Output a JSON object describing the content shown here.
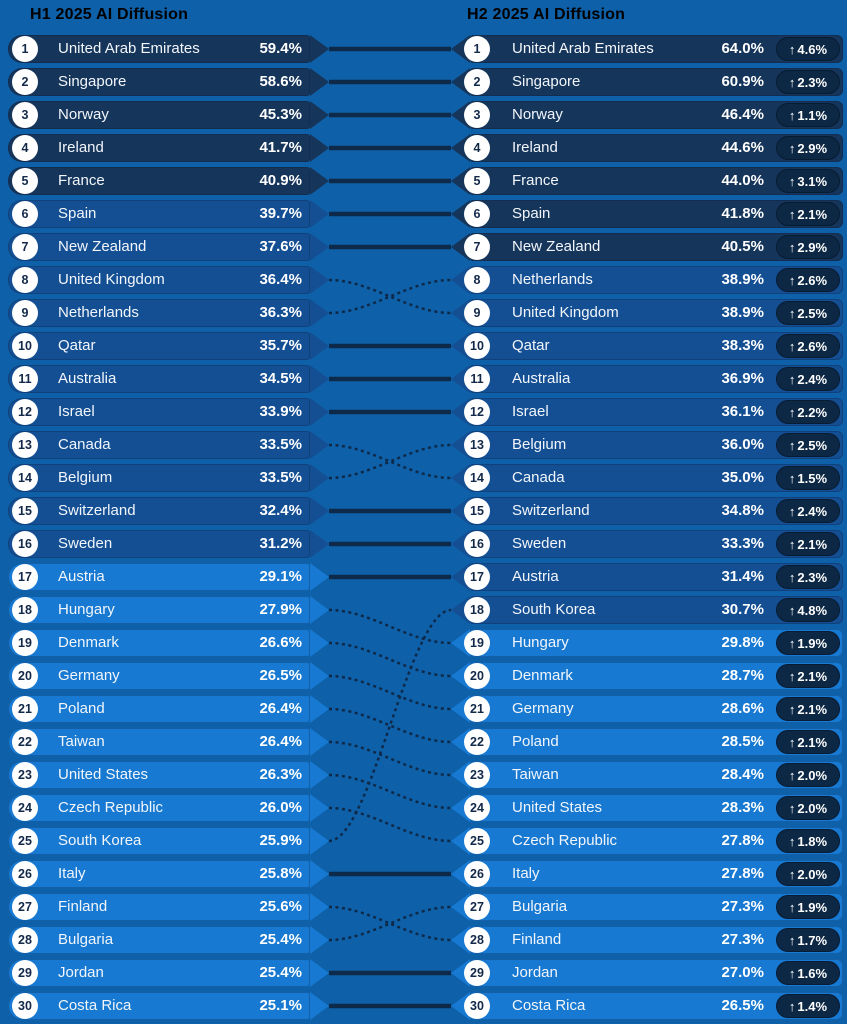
{
  "page_background": "#0E60A8",
  "chart_data": {
    "type": "table",
    "subtype": "rank-slope-comparison",
    "unit": "%",
    "legend_position": "none",
    "grid": false,
    "value_color_bands": {
      "high_min": 40,
      "high_color": "#16355B",
      "mid_min": 30,
      "mid_color": "#144F94",
      "low_color": "#1779D1"
    },
    "accents": {
      "canvas": "#0E60A8",
      "connector_line": "#0E2A4A",
      "delta_badge_bg": "#0D2845",
      "rank_circle_bg": "#FFFFFF",
      "rank_circle_text": "#13294A",
      "header_text": "#000000",
      "row_text": "#FFFFFF"
    },
    "up_arrow_icon": "↑",
    "columns": [
      {
        "title": "H1 2025 AI Diffusion",
        "rows": [
          {
            "rank": 1,
            "country": "United Arab Emirates",
            "value": 59.4
          },
          {
            "rank": 2,
            "country": "Singapore",
            "value": 58.6
          },
          {
            "rank": 3,
            "country": "Norway",
            "value": 45.3
          },
          {
            "rank": 4,
            "country": "Ireland",
            "value": 41.7
          },
          {
            "rank": 5,
            "country": "France",
            "value": 40.9
          },
          {
            "rank": 6,
            "country": "Spain",
            "value": 39.7
          },
          {
            "rank": 7,
            "country": "New Zealand",
            "value": 37.6
          },
          {
            "rank": 8,
            "country": "United Kingdom",
            "value": 36.4
          },
          {
            "rank": 9,
            "country": "Netherlands",
            "value": 36.3
          },
          {
            "rank": 10,
            "country": "Qatar",
            "value": 35.7
          },
          {
            "rank": 11,
            "country": "Australia",
            "value": 34.5
          },
          {
            "rank": 12,
            "country": "Israel",
            "value": 33.9
          },
          {
            "rank": 13,
            "country": "Canada",
            "value": 33.5
          },
          {
            "rank": 14,
            "country": "Belgium",
            "value": 33.5
          },
          {
            "rank": 15,
            "country": "Switzerland",
            "value": 32.4
          },
          {
            "rank": 16,
            "country": "Sweden",
            "value": 31.2
          },
          {
            "rank": 17,
            "country": "Austria",
            "value": 29.1
          },
          {
            "rank": 18,
            "country": "Hungary",
            "value": 27.9
          },
          {
            "rank": 19,
            "country": "Denmark",
            "value": 26.6
          },
          {
            "rank": 20,
            "country": "Germany",
            "value": 26.5
          },
          {
            "rank": 21,
            "country": "Poland",
            "value": 26.4
          },
          {
            "rank": 22,
            "country": "Taiwan",
            "value": 26.4
          },
          {
            "rank": 23,
            "country": "United States",
            "value": 26.3
          },
          {
            "rank": 24,
            "country": "Czech Republic",
            "value": 26.0
          },
          {
            "rank": 25,
            "country": "South Korea",
            "value": 25.9
          },
          {
            "rank": 26,
            "country": "Italy",
            "value": 25.8
          },
          {
            "rank": 27,
            "country": "Finland",
            "value": 25.6
          },
          {
            "rank": 28,
            "country": "Bulgaria",
            "value": 25.4
          },
          {
            "rank": 29,
            "country": "Jordan",
            "value": 25.4
          },
          {
            "rank": 30,
            "country": "Costa Rica",
            "value": 25.1
          }
        ]
      },
      {
        "title": "H2 2025 AI Diffusion",
        "rows": [
          {
            "rank": 1,
            "country": "United Arab Emirates",
            "value": 64.0,
            "delta": 4.6,
            "direction": "up"
          },
          {
            "rank": 2,
            "country": "Singapore",
            "value": 60.9,
            "delta": 2.3,
            "direction": "up"
          },
          {
            "rank": 3,
            "country": "Norway",
            "value": 46.4,
            "delta": 1.1,
            "direction": "up"
          },
          {
            "rank": 4,
            "country": "Ireland",
            "value": 44.6,
            "delta": 2.9,
            "direction": "up"
          },
          {
            "rank": 5,
            "country": "France",
            "value": 44.0,
            "delta": 3.1,
            "direction": "up"
          },
          {
            "rank": 6,
            "country": "Spain",
            "value": 41.8,
            "delta": 2.1,
            "direction": "up"
          },
          {
            "rank": 7,
            "country": "New Zealand",
            "value": 40.5,
            "delta": 2.9,
            "direction": "up"
          },
          {
            "rank": 8,
            "country": "Netherlands",
            "value": 38.9,
            "delta": 2.6,
            "direction": "up"
          },
          {
            "rank": 9,
            "country": "United Kingdom",
            "value": 38.9,
            "delta": 2.5,
            "direction": "up"
          },
          {
            "rank": 10,
            "country": "Qatar",
            "value": 38.3,
            "delta": 2.6,
            "direction": "up"
          },
          {
            "rank": 11,
            "country": "Australia",
            "value": 36.9,
            "delta": 2.4,
            "direction": "up"
          },
          {
            "rank": 12,
            "country": "Israel",
            "value": 36.1,
            "delta": 2.2,
            "direction": "up"
          },
          {
            "rank": 13,
            "country": "Belgium",
            "value": 36.0,
            "delta": 2.5,
            "direction": "up"
          },
          {
            "rank": 14,
            "country": "Canada",
            "value": 35.0,
            "delta": 1.5,
            "direction": "up"
          },
          {
            "rank": 15,
            "country": "Switzerland",
            "value": 34.8,
            "delta": 2.4,
            "direction": "up"
          },
          {
            "rank": 16,
            "country": "Sweden",
            "value": 33.3,
            "delta": 2.1,
            "direction": "up"
          },
          {
            "rank": 17,
            "country": "Austria",
            "value": 31.4,
            "delta": 2.3,
            "direction": "up"
          },
          {
            "rank": 18,
            "country": "South Korea",
            "value": 30.7,
            "delta": 4.8,
            "direction": "up"
          },
          {
            "rank": 19,
            "country": "Hungary",
            "value": 29.8,
            "delta": 1.9,
            "direction": "up"
          },
          {
            "rank": 20,
            "country": "Denmark",
            "value": 28.7,
            "delta": 2.1,
            "direction": "up"
          },
          {
            "rank": 21,
            "country": "Germany",
            "value": 28.6,
            "delta": 2.1,
            "direction": "up"
          },
          {
            "rank": 22,
            "country": "Poland",
            "value": 28.5,
            "delta": 2.1,
            "direction": "up"
          },
          {
            "rank": 23,
            "country": "Taiwan",
            "value": 28.4,
            "delta": 2.0,
            "direction": "up"
          },
          {
            "rank": 24,
            "country": "United States",
            "value": 28.3,
            "delta": 2.0,
            "direction": "up"
          },
          {
            "rank": 25,
            "country": "Czech Republic",
            "value": 27.8,
            "delta": 1.8,
            "direction": "up"
          },
          {
            "rank": 26,
            "country": "Italy",
            "value": 27.8,
            "delta": 2.0,
            "direction": "up"
          },
          {
            "rank": 27,
            "country": "Bulgaria",
            "value": 27.3,
            "delta": 1.9,
            "direction": "up"
          },
          {
            "rank": 28,
            "country": "Finland",
            "value": 27.3,
            "delta": 1.7,
            "direction": "up"
          },
          {
            "rank": 29,
            "country": "Jordan",
            "value": 27.0,
            "delta": 1.6,
            "direction": "up"
          },
          {
            "rank": 30,
            "country": "Costa Rica",
            "value": 26.5,
            "delta": 1.4,
            "direction": "up"
          }
        ]
      }
    ]
  }
}
